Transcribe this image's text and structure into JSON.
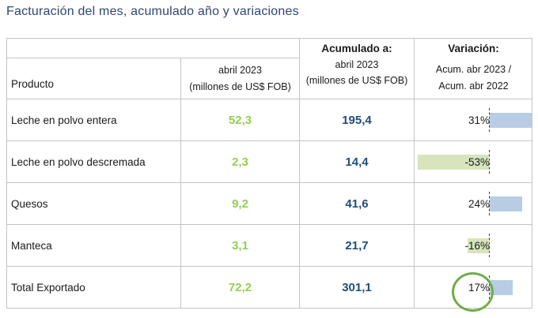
{
  "title": "Facturación del mes, acumulado año y variaciones",
  "table": {
    "header": {
      "producto_label": "Producto",
      "month_line1": "abril 2023",
      "month_line2": "(millones de US$ FOB)",
      "accum_top": "Acumulado a:",
      "accum_line1": "abril 2023",
      "accum_line2": "(millones de US$ FOB)",
      "var_top": "Variación:",
      "var_line1": "Acum. abr 2023 /",
      "var_line2": "Acum. abr 2022"
    },
    "rows": [
      {
        "producto": "Leche en polvo entera",
        "month": "52,3",
        "accum": "195,4",
        "variation": "31%",
        "variation_value": 31
      },
      {
        "producto": "Leche en polvo descremada",
        "month": "2,3",
        "accum": "14,4",
        "variation": "-53%",
        "variation_value": -53
      },
      {
        "producto": "Quesos",
        "month": "9,2",
        "accum": "41,6",
        "variation": "24%",
        "variation_value": 24
      },
      {
        "producto": "Manteca",
        "month": "3,1",
        "accum": "21,7",
        "variation": "-16%",
        "variation_value": -16
      },
      {
        "producto": "Total Exportado",
        "month": "72,2",
        "accum": "301,1",
        "variation": "17%",
        "variation_value": 17,
        "highlighted": true
      }
    ]
  },
  "colors": {
    "title_color": "#2f4577",
    "num_green": "#92d050",
    "num_blue": "#1f4e79",
    "bar_positive": "#b8cce4",
    "bar_negative": "#d7e4bc",
    "circle_green": "#70ad47",
    "border_gray": "#c4c4c4"
  },
  "chart_data": {
    "type": "bar",
    "orientation": "horizontal",
    "title": "Variación: Acum. abr 2023 / Acum. abr 2022",
    "unit": "%",
    "categories": [
      "Leche en polvo entera",
      "Leche en polvo descremada",
      "Quesos",
      "Manteca",
      "Total Exportado"
    ],
    "values": [
      31,
      -53,
      24,
      -16,
      17
    ],
    "xlim": [
      -53,
      31
    ],
    "positive_color": "#b8cce4",
    "negative_color": "#d7e4bc",
    "annotation": "17% circled in green"
  }
}
